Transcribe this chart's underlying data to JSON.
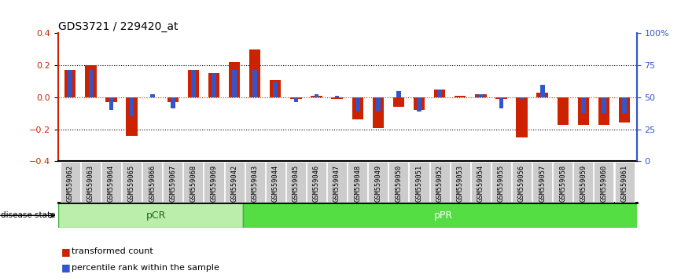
{
  "title": "GDS3721 / 229420_at",
  "samples": [
    "GSM559062",
    "GSM559063",
    "GSM559064",
    "GSM559065",
    "GSM559066",
    "GSM559067",
    "GSM559068",
    "GSM559069",
    "GSM559042",
    "GSM559043",
    "GSM559044",
    "GSM559045",
    "GSM559046",
    "GSM559047",
    "GSM559048",
    "GSM559049",
    "GSM559050",
    "GSM559051",
    "GSM559052",
    "GSM559053",
    "GSM559054",
    "GSM559055",
    "GSM559056",
    "GSM559057",
    "GSM559058",
    "GSM559059",
    "GSM559060",
    "GSM559061"
  ],
  "red_values": [
    0.17,
    0.2,
    -0.03,
    -0.24,
    0.0,
    -0.03,
    0.17,
    0.15,
    0.22,
    0.3,
    0.11,
    -0.01,
    0.01,
    -0.01,
    -0.14,
    -0.19,
    -0.06,
    -0.08,
    0.05,
    0.01,
    0.02,
    -0.01,
    -0.25,
    0.03,
    -0.17,
    -0.17,
    -0.17,
    -0.16
  ],
  "blue_values": [
    0.17,
    0.17,
    -0.08,
    -0.12,
    0.02,
    -0.07,
    0.17,
    0.15,
    0.17,
    0.17,
    0.1,
    -0.03,
    0.02,
    0.01,
    -0.09,
    -0.09,
    0.04,
    -0.09,
    0.05,
    0.0,
    0.02,
    -0.07,
    -0.01,
    0.08,
    0.0,
    -0.1,
    -0.1,
    -0.1
  ],
  "pCR_count": 9,
  "pPR_count": 19,
  "ylim": [
    -0.4,
    0.4
  ],
  "yticks_left": [
    -0.4,
    -0.2,
    0.0,
    0.2,
    0.4
  ],
  "yticks_right": [
    0,
    25,
    50,
    75,
    100
  ],
  "ytick_labels_right": [
    "0",
    "25",
    "50",
    "75",
    "100%"
  ],
  "red_color": "#cc2200",
  "blue_color": "#3355cc",
  "pCR_color": "#bbeeaa",
  "pPR_color": "#55dd44",
  "tick_bg_color": "#cccccc",
  "bar_width": 0.55,
  "blue_bar_width": 0.22
}
